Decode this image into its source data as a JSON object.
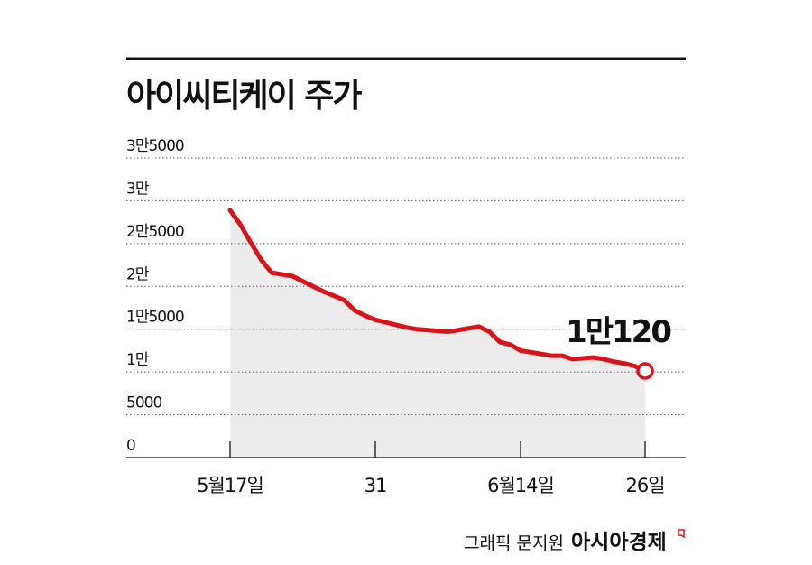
{
  "chart_data": {
    "type": "line",
    "title": "아이씨티케이 주가",
    "categories": [
      "5월17일",
      null,
      null,
      null,
      null,
      null,
      null,
      null,
      null,
      null,
      null,
      null,
      null,
      null,
      "31",
      null,
      null,
      null,
      null,
      null,
      null,
      null,
      null,
      null,
      null,
      null,
      null,
      null,
      "6월14일",
      null,
      null,
      null,
      null,
      null,
      null,
      null,
      null,
      null,
      null,
      null,
      "26일"
    ],
    "values": [
      28900,
      27200,
      25100,
      23100,
      21600,
      21400,
      21200,
      20600,
      20000,
      19400,
      18900,
      18400,
      17200,
      16600,
      16100,
      15800,
      15500,
      15200,
      15000,
      14900,
      14800,
      14700,
      14900,
      15100,
      15300,
      14700,
      13500,
      13200,
      12500,
      12300,
      12100,
      11900,
      11900,
      11500,
      11600,
      11700,
      11500,
      11200,
      11000,
      10700,
      10120
    ],
    "value_labels": [
      null,
      null,
      null,
      null,
      null,
      null,
      null,
      null,
      null,
      null,
      null,
      null,
      null,
      null,
      null,
      null,
      null,
      null,
      null,
      null,
      null,
      null,
      null,
      null,
      null,
      null,
      null,
      null,
      null,
      null,
      null,
      null,
      null,
      null,
      null,
      null,
      null,
      null,
      null,
      null,
      "1만120"
    ],
    "color": "#d7141a",
    "area_color": "#ececec",
    "ylim": [
      0,
      35000
    ],
    "yticks": [
      0,
      5000,
      {
        "value": 10000,
        "label": "1만"
      },
      {
        "value": 15000,
        "label": "1만5000"
      },
      {
        "value": 20000,
        "label": "2만"
      },
      {
        "value": 25000,
        "label": "2만5000"
      },
      {
        "value": 30000,
        "label": "3만"
      },
      {
        "value": 35000,
        "label": "3만5000"
      }
    ],
    "grid": true,
    "credit": "그래픽 문지원",
    "source": "아시아경제"
  }
}
